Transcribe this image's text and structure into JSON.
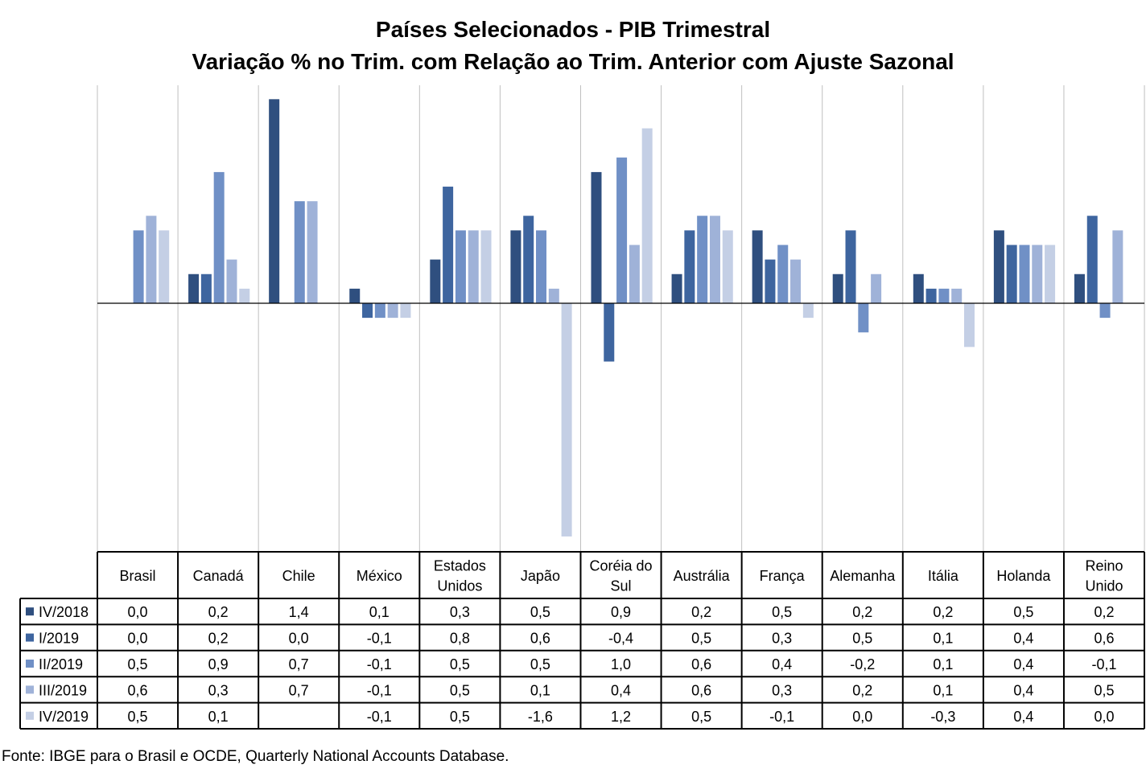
{
  "chart_data": {
    "type": "bar",
    "title": "Países Selecionados - PIB Trimestral",
    "subtitle": "Variação % no Trim. com Relação ao Trim. Anterior com Ajuste Sazonal",
    "categories": [
      "Brasil",
      "Canadá",
      "Chile",
      "México",
      "Estados Unidos",
      "Japão",
      "Coréia do Sul",
      "Austrália",
      "França",
      "Alemanha",
      "Itália",
      "Holanda",
      "Reino Unido"
    ],
    "category_lines": [
      [
        "Brasil"
      ],
      [
        "Canadá"
      ],
      [
        "Chile"
      ],
      [
        "México"
      ],
      [
        "Estados",
        "Unidos"
      ],
      [
        "Japão"
      ],
      [
        "Coréia do",
        "Sul"
      ],
      [
        "Austrália"
      ],
      [
        "França"
      ],
      [
        "Alemanha"
      ],
      [
        "Itália"
      ],
      [
        "Holanda"
      ],
      [
        "Reino",
        "Unido"
      ]
    ],
    "series": [
      {
        "name": "IV/2018",
        "color": "#2f4f7f",
        "values": [
          0.0,
          0.2,
          1.4,
          0.1,
          0.3,
          0.5,
          0.9,
          0.2,
          0.5,
          0.2,
          0.2,
          0.5,
          0.2
        ],
        "labels": [
          "0,0",
          "0,2",
          "1,4",
          "0,1",
          "0,3",
          "0,5",
          "0,9",
          "0,2",
          "0,5",
          "0,2",
          "0,2",
          "0,5",
          "0,2"
        ]
      },
      {
        "name": "I/2019",
        "color": "#3e659f",
        "values": [
          0.0,
          0.2,
          0.0,
          -0.1,
          0.8,
          0.6,
          -0.4,
          0.5,
          0.3,
          0.5,
          0.1,
          0.4,
          0.6
        ],
        "labels": [
          "0,0",
          "0,2",
          "0,0",
          "-0,1",
          "0,8",
          "0,6",
          "-0,4",
          "0,5",
          "0,3",
          "0,5",
          "0,1",
          "0,4",
          "0,6"
        ]
      },
      {
        "name": "II/2019",
        "color": "#7090c6",
        "values": [
          0.5,
          0.9,
          0.7,
          -0.1,
          0.5,
          0.5,
          1.0,
          0.6,
          0.4,
          -0.2,
          0.1,
          0.4,
          -0.1
        ],
        "labels": [
          "0,5",
          "0,9",
          "0,7",
          "-0,1",
          "0,5",
          "0,5",
          "1,0",
          "0,6",
          "0,4",
          "-0,2",
          "0,1",
          "0,4",
          "-0,1"
        ]
      },
      {
        "name": "III/2019",
        "color": "#9fb2d8",
        "values": [
          0.6,
          0.3,
          0.7,
          -0.1,
          0.5,
          0.1,
          0.4,
          0.6,
          0.3,
          0.2,
          0.1,
          0.4,
          0.5
        ],
        "labels": [
          "0,6",
          "0,3",
          "0,7",
          "-0,1",
          "0,5",
          "0,1",
          "0,4",
          "0,6",
          "0,3",
          "0,2",
          "0,1",
          "0,4",
          "0,5"
        ]
      },
      {
        "name": "IV/2019",
        "color": "#c4cfe5",
        "values": [
          0.5,
          0.1,
          null,
          -0.1,
          0.5,
          -1.6,
          1.2,
          0.5,
          -0.1,
          0.0,
          -0.3,
          0.4,
          0.0
        ],
        "labels": [
          "0,5",
          "0,1",
          "",
          "-0,1",
          "0,5",
          "-1,6",
          "1,2",
          "0,5",
          "-0,1",
          "0,0",
          "-0,3",
          "0,4",
          "0,0"
        ]
      }
    ],
    "ylim": [
      -1.7,
      1.5
    ],
    "grid": "vertical category separators",
    "legend": "data table below chart"
  },
  "source": "Fonte: IBGE para o Brasil e OCDE, Quarterly National Accounts Database."
}
